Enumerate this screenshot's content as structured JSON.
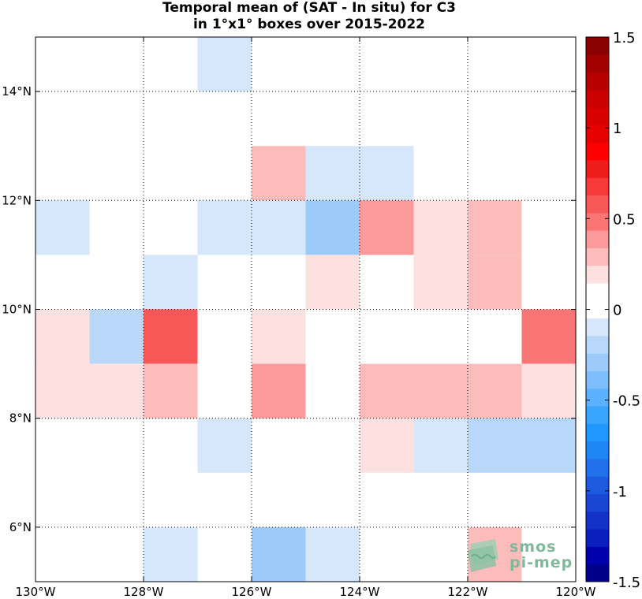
{
  "title_line1": "Temporal mean of (SAT - In situ) for C3",
  "title_line2": "in 1°x1° boxes over 2015-2022",
  "logo": {
    "line1": "smos",
    "line2": "pi-mep"
  },
  "chart_data": {
    "type": "heatmap",
    "title": "Temporal mean of (SAT - In situ) for C3 in 1°x1° boxes over 2015-2022",
    "lon_range": [
      -130,
      -120
    ],
    "lat_range": [
      5,
      15
    ],
    "x_ticks": [
      {
        "value": -130,
        "label": "130°W"
      },
      {
        "value": -128,
        "label": "128°W"
      },
      {
        "value": -126,
        "label": "126°W"
      },
      {
        "value": -124,
        "label": "124°W"
      },
      {
        "value": -122,
        "label": "122°W"
      },
      {
        "value": -120,
        "label": "120°W"
      }
    ],
    "y_ticks": [
      {
        "value": 6,
        "label": "6°N"
      },
      {
        "value": 8,
        "label": "8°N"
      },
      {
        "value": 10,
        "label": "10°N"
      },
      {
        "value": 12,
        "label": "12°N"
      },
      {
        "value": 14,
        "label": "14°N"
      }
    ],
    "grid": "dotted",
    "colorbar": {
      "range": [
        -1.5,
        1.5
      ],
      "step": 0.1,
      "ticks": [
        {
          "value": 1.5,
          "label": "1.5"
        },
        {
          "value": 1,
          "label": "1"
        },
        {
          "value": 0.5,
          "label": "0.5"
        },
        {
          "value": 0,
          "label": "0"
        },
        {
          "value": -0.5,
          "label": "-0.5"
        },
        {
          "value": -1,
          "label": "-1"
        },
        {
          "value": -1.5,
          "label": "-1.5"
        }
      ],
      "levels": [
        "#00008b",
        "#0000ad",
        "#0a1fbd",
        "#1432c8",
        "#1a46d4",
        "#1e5ae0",
        "#2070ea",
        "#1e86f5",
        "#1f99ff",
        "#3aa5ff",
        "#5cb1ff",
        "#7dbdfb",
        "#9dcaf8",
        "#b9d7f8",
        "#d6e7fb",
        "#ffffff",
        "#ffffff",
        "#fde0e0",
        "#fcbcbc",
        "#fb9a9a",
        "#fa7676",
        "#f85858",
        "#f63a3a",
        "#ee1d1d",
        "#ff0000",
        "#e60000",
        "#d80000",
        "#c80000",
        "#b80000",
        "#a50000",
        "#8b0000"
      ]
    },
    "cells": [
      {
        "lon": -127,
        "lat": 14,
        "value": -0.1
      },
      {
        "lon": -126,
        "lat": 12,
        "value": 0.3
      },
      {
        "lon": -125,
        "lat": 12,
        "value": -0.1
      },
      {
        "lon": -124,
        "lat": 12,
        "value": -0.1
      },
      {
        "lon": -130,
        "lat": 11,
        "value": -0.1
      },
      {
        "lon": -127,
        "lat": 11,
        "value": -0.1
      },
      {
        "lon": -126,
        "lat": 11,
        "value": -0.1
      },
      {
        "lon": -125,
        "lat": 11,
        "value": -0.25
      },
      {
        "lon": -124,
        "lat": 11,
        "value": 0.4
      },
      {
        "lon": -123,
        "lat": 11,
        "value": 0.2
      },
      {
        "lon": -122,
        "lat": 11,
        "value": 0.3
      },
      {
        "lon": -128,
        "lat": 10,
        "value": -0.1
      },
      {
        "lon": -125,
        "lat": 10,
        "value": 0.2
      },
      {
        "lon": -123,
        "lat": 10,
        "value": 0.2
      },
      {
        "lon": -122,
        "lat": 10,
        "value": 0.3
      },
      {
        "lon": -130,
        "lat": 9,
        "value": 0.2
      },
      {
        "lon": -129,
        "lat": 9,
        "value": -0.2
      },
      {
        "lon": -128,
        "lat": 9,
        "value": 0.6
      },
      {
        "lon": -126,
        "lat": 9,
        "value": 0.2
      },
      {
        "lon": -121,
        "lat": 9,
        "value": 0.45
      },
      {
        "lon": -130,
        "lat": 8,
        "value": 0.2
      },
      {
        "lon": -129,
        "lat": 8,
        "value": 0.2
      },
      {
        "lon": -128,
        "lat": 8,
        "value": 0.3
      },
      {
        "lon": -126,
        "lat": 8,
        "value": 0.35
      },
      {
        "lon": -124,
        "lat": 8,
        "value": 0.3
      },
      {
        "lon": -123,
        "lat": 8,
        "value": 0.3
      },
      {
        "lon": -122,
        "lat": 8,
        "value": 0.3
      },
      {
        "lon": -121,
        "lat": 8,
        "value": 0.2
      },
      {
        "lon": -127,
        "lat": 7,
        "value": -0.1
      },
      {
        "lon": -124,
        "lat": 7,
        "value": 0.2
      },
      {
        "lon": -123,
        "lat": 7,
        "value": -0.1
      },
      {
        "lon": -122,
        "lat": 7,
        "value": -0.2
      },
      {
        "lon": -121,
        "lat": 7,
        "value": -0.2
      },
      {
        "lon": -128,
        "lat": 5,
        "value": -0.1
      },
      {
        "lon": -126,
        "lat": 5,
        "value": -0.25
      },
      {
        "lon": -125,
        "lat": 5,
        "value": -0.1
      },
      {
        "lon": -122,
        "lat": 5,
        "value": 0.3
      }
    ]
  }
}
